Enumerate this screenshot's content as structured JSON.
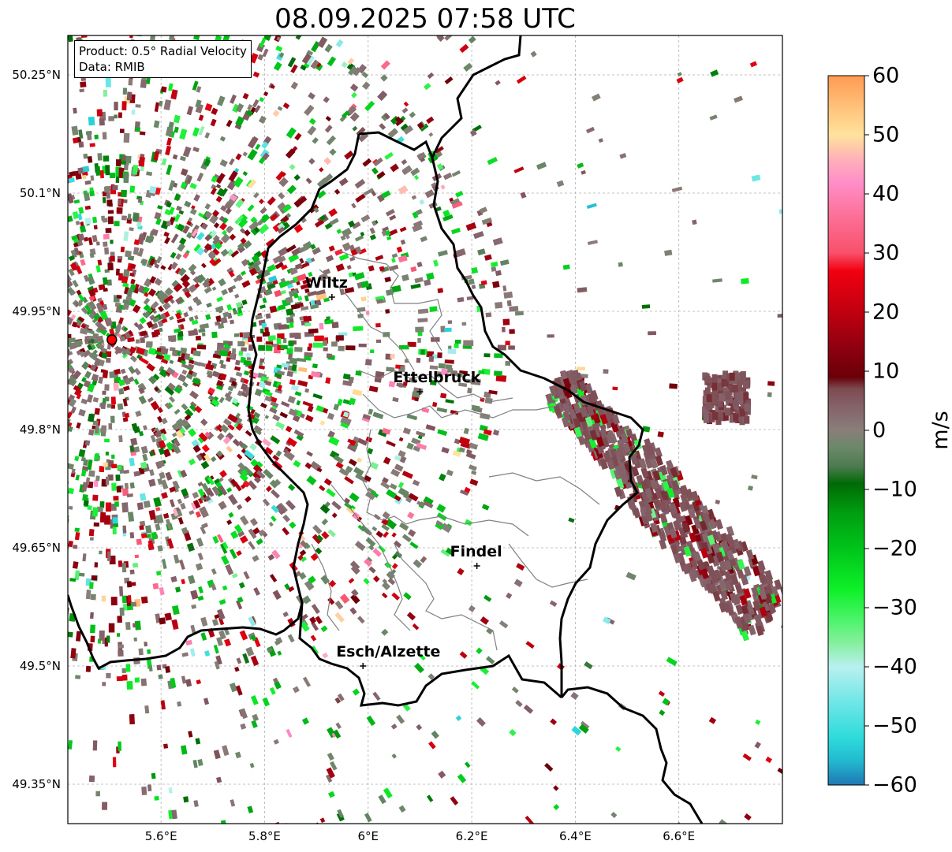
{
  "title": "08.09.2025 07:58 UTC",
  "info": {
    "product": "Product: 0.5° Radial Velocity",
    "data_source": "Data: RMIB"
  },
  "map": {
    "lat_ticks": [
      {
        "value": 50.25,
        "label": "50.25°N"
      },
      {
        "value": 50.1,
        "label": "50.1°N"
      },
      {
        "value": 49.95,
        "label": "49.95°N"
      },
      {
        "value": 49.8,
        "label": "49.8°N"
      },
      {
        "value": 49.65,
        "label": "49.65°N"
      },
      {
        "value": 49.5,
        "label": "49.5°N"
      },
      {
        "value": 49.35,
        "label": "49.35°N"
      }
    ],
    "lon_ticks": [
      {
        "value": 5.6,
        "label": "5.6°E"
      },
      {
        "value": 5.8,
        "label": "5.8°E"
      },
      {
        "value": 6.0,
        "label": "6°E"
      },
      {
        "value": 6.2,
        "label": "6.2°E"
      },
      {
        "value": 6.4,
        "label": "6.4°E"
      },
      {
        "value": 6.6,
        "label": "6.6°E"
      }
    ],
    "extent": {
      "lon_min": 5.42,
      "lon_max": 6.8,
      "lat_min": 49.3,
      "lat_max": 50.3
    },
    "radar_site": {
      "lon": 5.505,
      "lat": 49.914
    },
    "cities": [
      {
        "name": "Wiltz",
        "lon": 5.93,
        "lat": 49.968
      },
      {
        "name": "Ettelbruck",
        "lon": 6.1,
        "lat": 49.848
      },
      {
        "name": "Findel",
        "lon": 6.21,
        "lat": 49.627
      },
      {
        "name": "Esch/Alzette",
        "lon": 5.99,
        "lat": 49.5
      }
    ]
  },
  "colorbar": {
    "unit": "m/s",
    "min": -60,
    "max": 60,
    "ticks": [
      {
        "value": 60,
        "label": "60"
      },
      {
        "value": 50,
        "label": "50"
      },
      {
        "value": 40,
        "label": "40"
      },
      {
        "value": 30,
        "label": "30"
      },
      {
        "value": 20,
        "label": "20"
      },
      {
        "value": 10,
        "label": "10"
      },
      {
        "value": 0,
        "label": "0"
      },
      {
        "value": -10,
        "label": "−10"
      },
      {
        "value": -20,
        "label": "−20"
      },
      {
        "value": -30,
        "label": "−30"
      },
      {
        "value": -40,
        "label": "−40"
      },
      {
        "value": -50,
        "label": "−50"
      },
      {
        "value": -60,
        "label": "−60"
      }
    ],
    "stops": [
      {
        "value": -60,
        "color": "#1f77b4"
      },
      {
        "value": -56,
        "color": "#22b8cf"
      },
      {
        "value": -52,
        "color": "#2edbdb"
      },
      {
        "value": -46,
        "color": "#6fe6e6"
      },
      {
        "value": -40,
        "color": "#b8f0f0"
      },
      {
        "value": -36,
        "color": "#86ef9e"
      },
      {
        "value": -32,
        "color": "#4cf46a"
      },
      {
        "value": -27,
        "color": "#0ef028"
      },
      {
        "value": -20,
        "color": "#00c41a"
      },
      {
        "value": -14,
        "color": "#009e10"
      },
      {
        "value": -9,
        "color": "#006a05"
      },
      {
        "value": -6,
        "color": "#4e7b52"
      },
      {
        "value": -3,
        "color": "#6a8868"
      },
      {
        "value": 0,
        "color": "#8a7e7a"
      },
      {
        "value": 4,
        "color": "#85626a"
      },
      {
        "value": 7,
        "color": "#7d4b52"
      },
      {
        "value": 9,
        "color": "#6a0008"
      },
      {
        "value": 14,
        "color": "#8e0010"
      },
      {
        "value": 20,
        "color": "#c00010"
      },
      {
        "value": 27,
        "color": "#f20010"
      },
      {
        "value": 30,
        "color": "#f8506a"
      },
      {
        "value": 36,
        "color": "#fc6f95"
      },
      {
        "value": 42,
        "color": "#ff8ec8"
      },
      {
        "value": 46,
        "color": "#ffb2b8"
      },
      {
        "value": 50,
        "color": "#ffe39c"
      },
      {
        "value": 55,
        "color": "#ffbf78"
      },
      {
        "value": 60,
        "color": "#ff9a52"
      }
    ]
  },
  "colors": {
    "inbound_core": "#6a0008",
    "near_zero": "#8a7e7a",
    "outbound_green": "#0ef028",
    "border": "#000000",
    "canton_lines": "#808080",
    "radar_marker": "#ff0000"
  }
}
